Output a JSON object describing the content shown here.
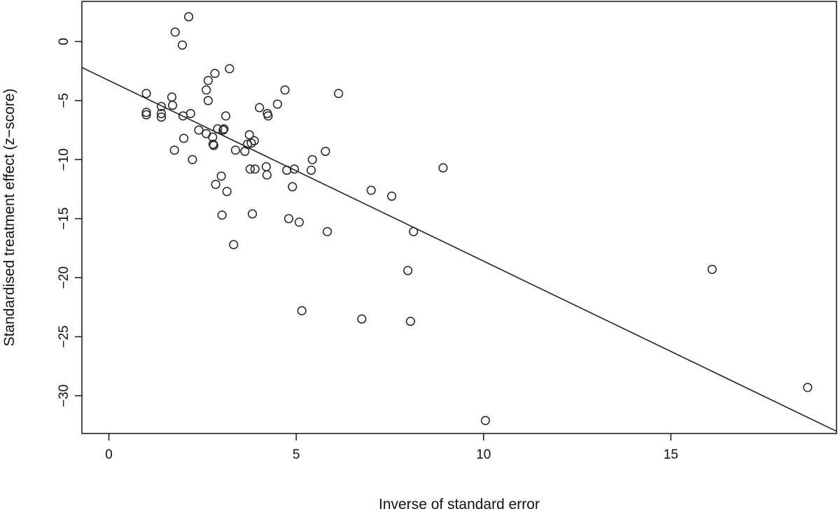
{
  "chart_data": {
    "type": "scatter",
    "title": "",
    "xlabel": "Inverse of standard error",
    "ylabel": "Standardised treatment effect (z−score)",
    "xlim": [
      -0.72,
      19.42
    ],
    "ylim": [
      -33.2,
      3.4
    ],
    "xticks": [
      0,
      5,
      10,
      15
    ],
    "yticks": [
      0,
      -5,
      -10,
      -15,
      -20,
      -25,
      -30
    ],
    "grid": false,
    "legend": "none",
    "regression_line": {
      "intercept": -3.3,
      "slope": -1.53
    },
    "colors": {
      "points": "#222222",
      "line": "#222222",
      "axes": "#222222"
    },
    "points": [
      {
        "x": 1.0,
        "y": -4.4
      },
      {
        "x": 1.0,
        "y": -6.0
      },
      {
        "x": 1.0,
        "y": -6.2
      },
      {
        "x": 1.4,
        "y": -5.5
      },
      {
        "x": 1.4,
        "y": -6.1
      },
      {
        "x": 1.4,
        "y": -6.4
      },
      {
        "x": 1.68,
        "y": -4.7
      },
      {
        "x": 1.7,
        "y": -5.4
      },
      {
        "x": 1.75,
        "y": -9.2
      },
      {
        "x": 1.77,
        "y": 0.8
      },
      {
        "x": 1.96,
        "y": -0.3
      },
      {
        "x": 1.98,
        "y": -6.3
      },
      {
        "x": 2.0,
        "y": -8.2
      },
      {
        "x": 2.13,
        "y": 2.1
      },
      {
        "x": 2.18,
        "y": -6.1
      },
      {
        "x": 2.23,
        "y": -10.0
      },
      {
        "x": 2.4,
        "y": -7.5
      },
      {
        "x": 2.6,
        "y": -4.1
      },
      {
        "x": 2.6,
        "y": -7.8
      },
      {
        "x": 2.65,
        "y": -3.3
      },
      {
        "x": 2.65,
        "y": -5.0
      },
      {
        "x": 2.77,
        "y": -8.1
      },
      {
        "x": 2.78,
        "y": -8.7
      },
      {
        "x": 2.8,
        "y": -8.8
      },
      {
        "x": 2.83,
        "y": -2.7
      },
      {
        "x": 2.85,
        "y": -12.1
      },
      {
        "x": 2.9,
        "y": -7.4
      },
      {
        "x": 3.0,
        "y": -11.4
      },
      {
        "x": 3.02,
        "y": -14.7
      },
      {
        "x": 3.05,
        "y": -7.5
      },
      {
        "x": 3.07,
        "y": -7.4
      },
      {
        "x": 3.12,
        "y": -6.3
      },
      {
        "x": 3.15,
        "y": -12.7
      },
      {
        "x": 3.22,
        "y": -2.3
      },
      {
        "x": 3.33,
        "y": -17.2
      },
      {
        "x": 3.38,
        "y": -9.2
      },
      {
        "x": 3.63,
        "y": -9.3
      },
      {
        "x": 3.7,
        "y": -8.7
      },
      {
        "x": 3.75,
        "y": -7.9
      },
      {
        "x": 3.77,
        "y": -10.8
      },
      {
        "x": 3.8,
        "y": -8.6
      },
      {
        "x": 3.83,
        "y": -14.6
      },
      {
        "x": 3.88,
        "y": -8.4
      },
      {
        "x": 3.9,
        "y": -10.8
      },
      {
        "x": 4.02,
        "y": -5.6
      },
      {
        "x": 4.2,
        "y": -10.6
      },
      {
        "x": 4.22,
        "y": -11.3
      },
      {
        "x": 4.23,
        "y": -6.1
      },
      {
        "x": 4.25,
        "y": -6.3
      },
      {
        "x": 4.5,
        "y": -5.3
      },
      {
        "x": 4.7,
        "y": -4.1
      },
      {
        "x": 4.75,
        "y": -10.9
      },
      {
        "x": 4.8,
        "y": -15.0
      },
      {
        "x": 4.9,
        "y": -12.3
      },
      {
        "x": 4.95,
        "y": -10.8
      },
      {
        "x": 5.08,
        "y": -15.3
      },
      {
        "x": 5.15,
        "y": -22.8
      },
      {
        "x": 5.4,
        "y": -10.9
      },
      {
        "x": 5.43,
        "y": -10.0
      },
      {
        "x": 5.78,
        "y": -9.3
      },
      {
        "x": 5.83,
        "y": -16.1
      },
      {
        "x": 6.13,
        "y": -4.4
      },
      {
        "x": 6.75,
        "y": -23.5
      },
      {
        "x": 7.0,
        "y": -12.6
      },
      {
        "x": 7.55,
        "y": -13.1
      },
      {
        "x": 7.98,
        "y": -19.4
      },
      {
        "x": 8.05,
        "y": -23.7
      },
      {
        "x": 8.13,
        "y": -16.1
      },
      {
        "x": 8.92,
        "y": -10.7
      },
      {
        "x": 10.05,
        "y": -32.1
      },
      {
        "x": 16.1,
        "y": -19.3
      },
      {
        "x": 18.65,
        "y": -29.3
      }
    ]
  }
}
